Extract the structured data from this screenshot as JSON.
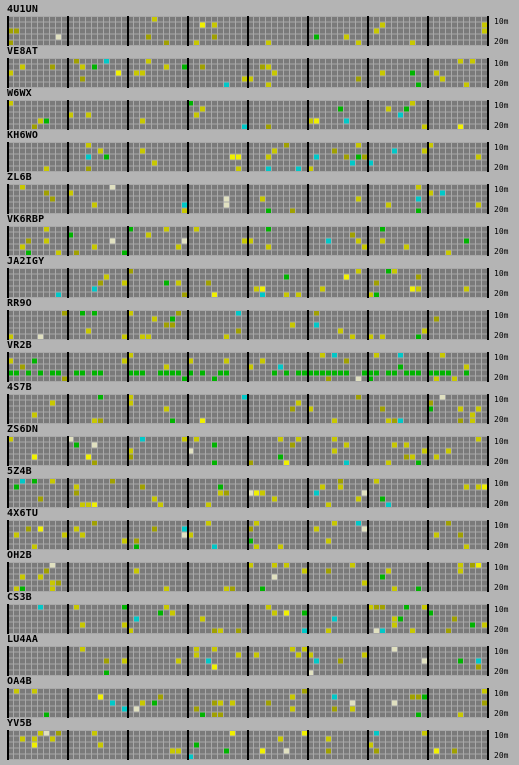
{
  "stations": [
    {
      "name": "4U1UN"
    },
    {
      "name": "VE8AT"
    },
    {
      "name": "W6WX"
    },
    {
      "name": "KH6WO"
    },
    {
      "name": "ZL6B"
    },
    {
      "name": "VK6RBP"
    },
    {
      "name": "JA2IGY"
    },
    {
      "name": "RR9O"
    },
    {
      "name": "VR2B"
    },
    {
      "name": "4S7B"
    },
    {
      "name": "ZS6DN"
    },
    {
      "name": "5Z4B"
    },
    {
      "name": "4X6TU"
    },
    {
      "name": "OH2B"
    },
    {
      "name": "CS3B"
    },
    {
      "name": "LU4AA"
    },
    {
      "name": "OA4B"
    },
    {
      "name": "YV5B"
    }
  ],
  "bands": {
    "top": "10m",
    "bottom": "20m"
  },
  "grid": {
    "columns": 8,
    "cells_per_column": 10,
    "rows": 5
  },
  "colors": {
    "background": "#b4b4b4",
    "grid_fill": "#7a7a7a",
    "grid_line": "#a8a8a8",
    "separator": "#000000",
    "yellow": "#c8c800",
    "bright_yellow": "#f0f000",
    "olive": "#a0a000",
    "cyan": "#00c8c8",
    "green": "#00b400",
    "dark_green": "#008000",
    "light": "#e0e0c0"
  },
  "signal_palette": [
    "yellow",
    "bright_yellow",
    "olive",
    "cyan",
    "green",
    "dark_green",
    "light"
  ]
}
